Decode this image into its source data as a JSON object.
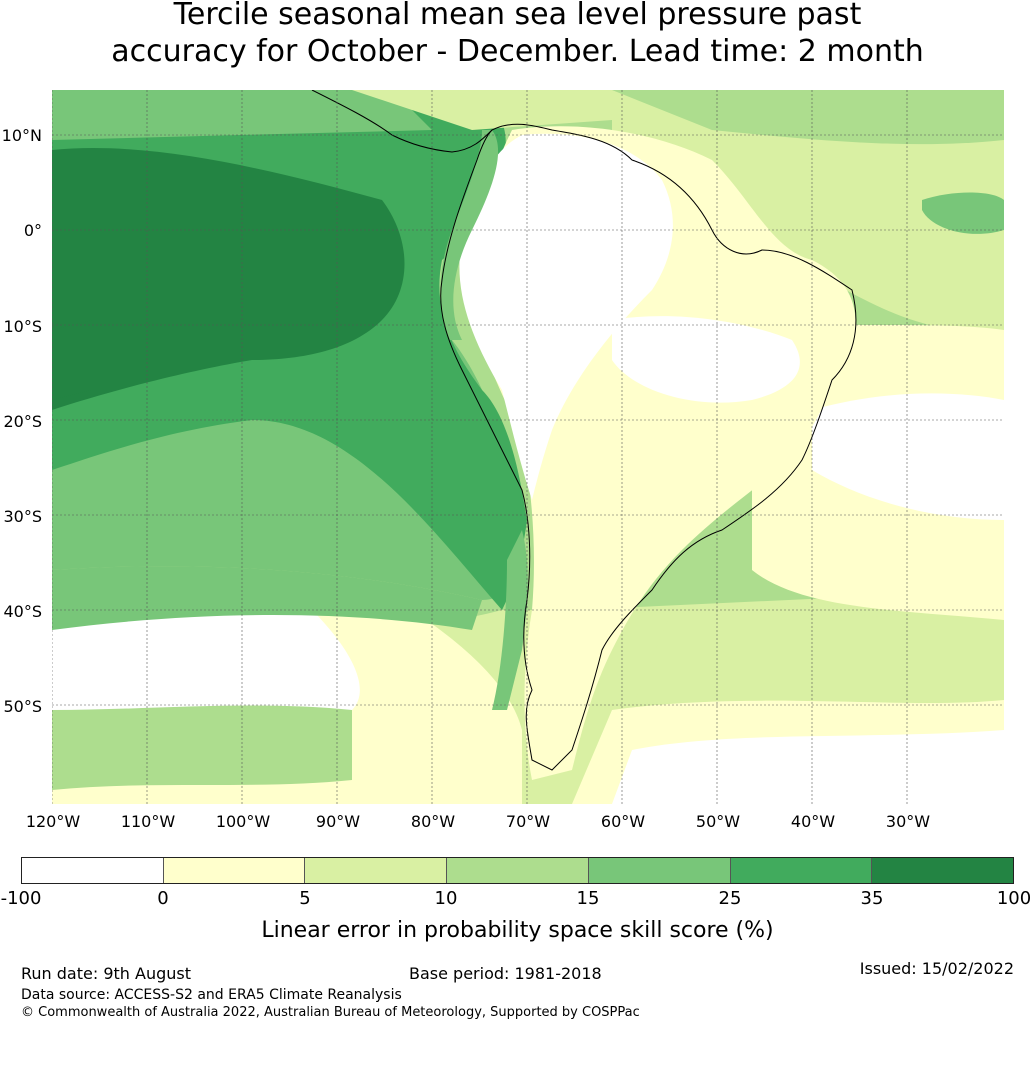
{
  "title_line1": "Tercile seasonal mean sea level pressure past",
  "title_line2": "accuracy for October - December. Lead time: 2 month",
  "lat_labels": [
    "10°N",
    "0°",
    "10°S",
    "20°S",
    "30°S",
    "40°S",
    "50°S"
  ],
  "lon_labels": [
    "120°W",
    "110°W",
    "100°W",
    "90°W",
    "80°W",
    "70°W",
    "60°W",
    "50°W",
    "40°W",
    "30°W"
  ],
  "colorbar": {
    "ticks": [
      "-100",
      "0",
      "5",
      "10",
      "15",
      "25",
      "35",
      "100"
    ],
    "colors": [
      "#ffffff",
      "#ffffcc",
      "#d9f0a3",
      "#addd8e",
      "#78c679",
      "#41ab5d",
      "#238443"
    ],
    "label": "Linear error in probability space skill score (%)"
  },
  "footer": {
    "run_date": "Run date: 9th August",
    "base_period": "Base period: 1981-2018",
    "issued": "Issued: 15/02/2022",
    "data_source": "Data source: ACCESS-S2 and ERA5 Climate Reanalysis",
    "copyright": "© Commonwealth of Australia 2022, Australian Bureau of Meteorology, Supported by COSPPac"
  }
}
